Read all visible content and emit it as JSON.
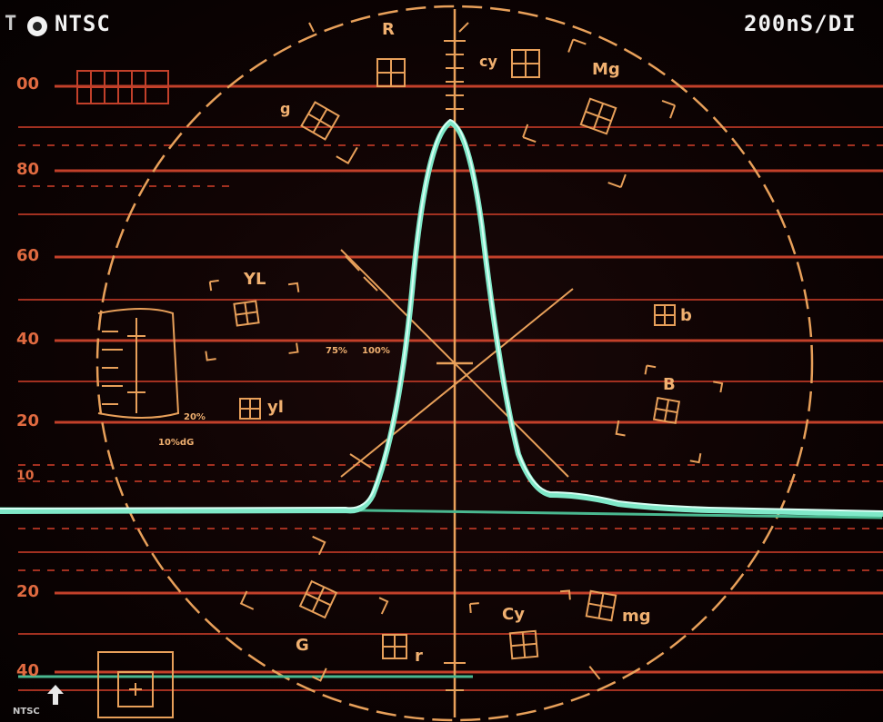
{
  "header": {
    "standard": "NTSC",
    "timebase": "200nS/DI",
    "channel_icon": "channel-circle-icon",
    "mode_prefix": "T"
  },
  "ire_scale": [
    "00",
    "80",
    "60",
    "40",
    "20",
    "10",
    "20",
    "40"
  ],
  "vector_targets": {
    "R": "R",
    "cy_small": "cy",
    "Mg": "Mg",
    "g_small": "g",
    "YL": "YL",
    "b_small": "b",
    "yl_small": "yl",
    "B": "B",
    "G": "G",
    "r_small": "r",
    "Cy": "Cy",
    "mg_small": "mg"
  },
  "markers": {
    "pct75": "75%",
    "pct100": "100%",
    "pct20": "20%",
    "pct10dg": "10%dG"
  },
  "bottom_left": "NTSC",
  "colors": {
    "graticule_red": "#c2402a",
    "graticule_amber": "#e8a05a",
    "trace_cyan": "#7fe8c8",
    "baseline_green": "#4ab890"
  }
}
